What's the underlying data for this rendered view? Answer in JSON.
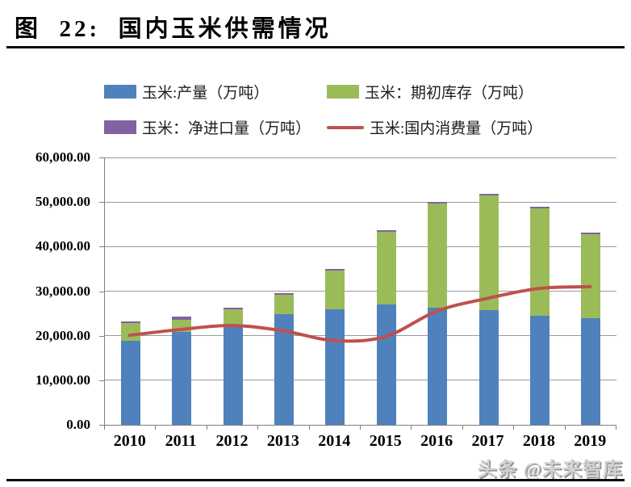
{
  "page": {
    "title": "图  22:  国内玉米供需情况",
    "watermark": "头条 @未来智库"
  },
  "colors": {
    "production_bar": "#4f81bd",
    "beginning_inventory_bar": "#9bbb59",
    "net_imports_bar": "#8064a2",
    "consumption_line": "#c0504d",
    "gridline": "#9a9a9a",
    "axis": "#7f7f7f",
    "title_text": "#000000",
    "watermark_text": "#d2d2d2"
  },
  "chart_data": {
    "type": "bar",
    "subtype": "stacked-bars-with-line",
    "title": "国内玉米供需情况",
    "categories": [
      "2010",
      "2011",
      "2012",
      "2013",
      "2014",
      "2015",
      "2016",
      "2017",
      "2018",
      "2019"
    ],
    "series": [
      {
        "name": "玉米:产量（万吨）",
        "type": "bar",
        "color": "#4f81bd",
        "values": [
          18900,
          20800,
          22200,
          24800,
          26000,
          27000,
          26300,
          25800,
          24400,
          23900
        ]
      },
      {
        "name": "玉米：期初库存（万吨）",
        "type": "bar",
        "color": "#9bbb59",
        "values": [
          3950,
          2800,
          3800,
          4450,
          8550,
          16250,
          23400,
          25600,
          24100,
          18900
        ]
      },
      {
        "name": "玉米：净进口量（万吨）",
        "type": "bar",
        "color": "#8064a2",
        "values": [
          150,
          600,
          150,
          200,
          300,
          300,
          100,
          300,
          350,
          350
        ]
      },
      {
        "name": "玉米:国内消费量（万吨）",
        "type": "line",
        "color": "#c0504d",
        "values": [
          20100,
          21400,
          22300,
          21100,
          18900,
          19800,
          25500,
          28400,
          30600,
          31000
        ]
      }
    ],
    "ylim": [
      0,
      60000
    ],
    "ytick_step": 10000,
    "ytick_labels": [
      "0.00",
      "10,000.00",
      "20,000.00",
      "30,000.00",
      "40,000.00",
      "50,000.00",
      "60,000.00"
    ],
    "xlabel": "",
    "ylabel": "",
    "grid": true,
    "legend_position": "top"
  }
}
